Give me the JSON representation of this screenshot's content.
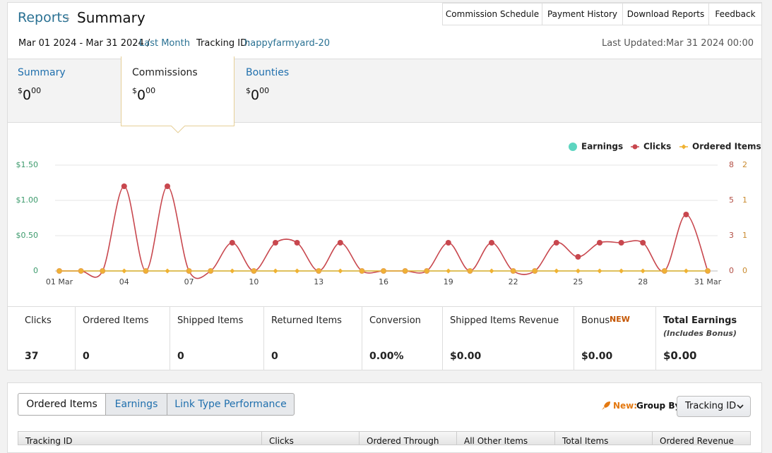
{
  "header": {
    "breadcrumb": "Reports",
    "title": "Summary",
    "buttons": [
      "Commission Schedule",
      "Payment History",
      "Download Reports",
      "Feedback"
    ]
  },
  "subheader": {
    "date_range": "Mar 01 2024 - Mar 31 2024 /",
    "period": "Last Month",
    "tracking_label": "Tracking ID:",
    "tracking_id": "happyfarmyard-20",
    "last_updated": "Last Updated:Mar 31 2024 00:00"
  },
  "tabs": [
    {
      "label": "Summary",
      "currency": "$",
      "whole": "0",
      "cents": "00"
    },
    {
      "label": "Commissions",
      "currency": "$",
      "whole": "0",
      "cents": "00"
    },
    {
      "label": "Bounties",
      "currency": "$",
      "whole": "0",
      "cents": "00"
    }
  ],
  "chart_data": {
    "type": "line",
    "categories": [
      "01 Mar",
      null,
      null,
      "04",
      null,
      null,
      "07",
      null,
      null,
      "10",
      null,
      null,
      "13",
      null,
      null,
      "16",
      null,
      null,
      "19",
      null,
      null,
      "22",
      null,
      null,
      "25",
      null,
      null,
      "28",
      null,
      null,
      "31 Mar"
    ],
    "series": [
      {
        "name": "Earnings",
        "color": "#5dd5c0",
        "axis": "y",
        "values": [
          0,
          0,
          0,
          0,
          0,
          0,
          0,
          0,
          0,
          0,
          0,
          0,
          0,
          0,
          0,
          0,
          0,
          0,
          0,
          0,
          0,
          0,
          0,
          0,
          0,
          0,
          0,
          0,
          0,
          0,
          0
        ]
      },
      {
        "name": "Clicks",
        "color": "#c8474e",
        "axis": "y2",
        "values": [
          0,
          0,
          0,
          6,
          0,
          6,
          0,
          0,
          2,
          0,
          2,
          2,
          0,
          2,
          0,
          0,
          0,
          0,
          2,
          0,
          2,
          0,
          0,
          2,
          1,
          2,
          2,
          2,
          0,
          4,
          0
        ]
      },
      {
        "name": "Ordered Items",
        "color": "#f0b232",
        "axis": "y3",
        "values": [
          0,
          0,
          0,
          0,
          0,
          0,
          0,
          0,
          0,
          0,
          0,
          0,
          0,
          0,
          0,
          0,
          0,
          0,
          0,
          0,
          0,
          0,
          0,
          0,
          0,
          0,
          0,
          0,
          0,
          0,
          0
        ]
      }
    ],
    "ylim": [
      0,
      1.5
    ],
    "yticks": [
      0,
      {
        "value": 0.5,
        "label": "$0.50"
      },
      {
        "value": 1,
        "label": "$1.00"
      },
      {
        "value": 1.5,
        "label": "$1.50"
      }
    ],
    "y2lim": [
      0,
      7.5
    ],
    "y2ticks": [
      0,
      {
        "value": 2.5,
        "label": "3"
      },
      5,
      {
        "value": 7.5,
        "label": "8"
      }
    ],
    "y3lim": [
      0,
      1.5
    ],
    "y3ticks": [
      0,
      {
        "value": 0.5,
        "label": "1"
      },
      1,
      {
        "value": 1.5,
        "label": "2"
      }
    ],
    "grid": true,
    "legend": "top-right"
  },
  "stats": [
    {
      "label": "Clicks",
      "value": 37
    },
    {
      "label": "Ordered Items",
      "value": 0
    },
    {
      "label": "Shipped Items",
      "value": 0
    },
    {
      "label": "Returned Items",
      "value": 0
    },
    {
      "label": "Conversion",
      "value": "0.00%"
    },
    {
      "label": "Shipped Items Revenue",
      "value": "$0.00"
    },
    {
      "label": "Bonus",
      "badge": "NEW",
      "value": "$0.00"
    },
    {
      "label": "Total Earnings",
      "sublabel": "(Includes Bonus)",
      "value": "$0.00"
    }
  ],
  "report": {
    "tabs": [
      "Ordered Items",
      "Earnings",
      "Link Type Performance"
    ],
    "new_label": "New:",
    "group_by_label": "Group By:",
    "group_by_value": "Tracking ID",
    "columns": [
      "Tracking ID",
      "Clicks",
      "Ordered Through",
      "All Other Items",
      "Total Items",
      "Ordered Revenue"
    ]
  }
}
